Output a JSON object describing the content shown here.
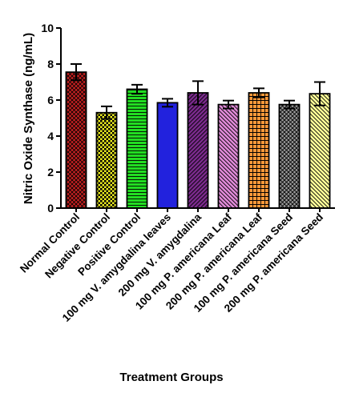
{
  "chart_data": {
    "type": "bar",
    "xlabel": "Treatment Groups",
    "ylabel": "Nitric Oxide Synthase (ng/mL)",
    "ylim": [
      0,
      10
    ],
    "yticks": [
      "0",
      "2",
      "4",
      "6",
      "8",
      "10"
    ],
    "grid": false,
    "categories": [
      "Normal Control",
      "Negative Control",
      "Positive Control",
      "100 mg V. amygdalina leaves",
      "200 mg V. amygdalina",
      "100 mg P. americana Leaf",
      "200 mg P. americana Leaf",
      "100 mg P. americana Seed",
      "200 mg P. americana Seed"
    ],
    "values": [
      7.55,
      5.3,
      6.6,
      5.85,
      6.4,
      5.75,
      6.4,
      5.75,
      6.35
    ],
    "errors": [
      0.45,
      0.35,
      0.25,
      0.22,
      0.65,
      0.22,
      0.25,
      0.22,
      0.65
    ],
    "colors": [
      "#cc2222",
      "#eeee22",
      "#22dd22",
      "#2222dd",
      "#7a2a8c",
      "#e08ad8",
      "#ff9a3a",
      "#9a9a9a",
      "#ffff99"
    ],
    "patterns": [
      "crosshatch",
      "checker",
      "hlines",
      "solid",
      "diag-fwd",
      "diag-back",
      "grid",
      "crosshatch",
      "diag-back"
    ]
  }
}
